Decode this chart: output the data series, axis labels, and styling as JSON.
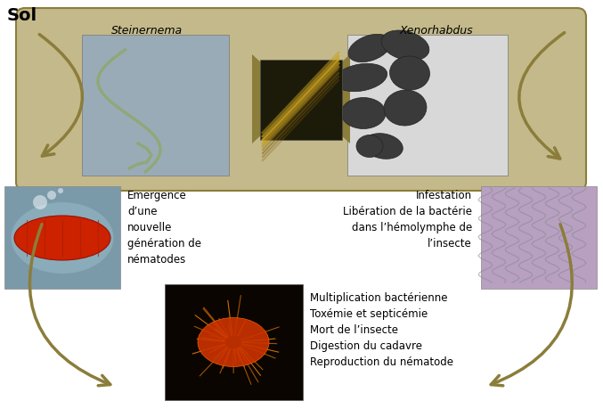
{
  "title_text": "Sol",
  "title_fontsize": 14,
  "title_bold": true,
  "arrow_color": "#8B7D3A",
  "box_bg": "#C4B98A",
  "box_edge": "#8B7D3A",
  "label_steinernema": "Steinernema",
  "label_xenorhabdus": "Xenorhabdus",
  "text_emergence": "Emergence\nd’une\nnouvelle\ngénération de\nnématodes",
  "text_infestation": "Infestation\nLibération de la bactérie\ndans l’hémolymphe de\nl’insecte",
  "text_multiplication": "Multiplication bactérienne\nToxémie et septicémie\nMort de l’insecte\nDigestion du cadavre\nReproduction du nématode",
  "text_fontsize": 8.5,
  "label_fontsize": 9,
  "fig_width": 6.77,
  "fig_height": 4.6,
  "dpi": 100,
  "nema_color": "#9AABB8",
  "nema_worm_color": "#7A8A70",
  "center_photo_color": "#1C1A08",
  "center_yellow_color": "#C8A020",
  "xeno_bg": "#D8D8D8",
  "xeno_bacteria_color": "#555555",
  "larva_bg": "#7A9AAA",
  "larva_body_color": "#CC3300",
  "micro_bg": "#B8A0C0",
  "cadaver_bg": "#0A0500",
  "cadaver_glow": "#CC5500"
}
